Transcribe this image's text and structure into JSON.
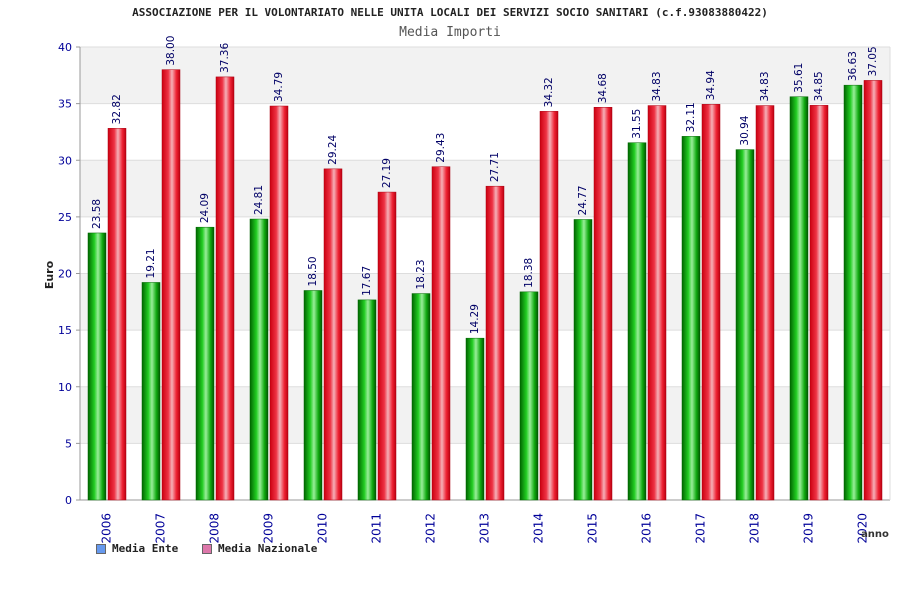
{
  "chart_data": {
    "type": "bar",
    "title": "ASSOCIAZIONE PER IL VOLONTARIATO NELLE UNITA LOCALI DEI SERVIZI SOCIO SANITARI (c.f.93083880422)",
    "subtitle": "Media Importi",
    "xlabel": "anno",
    "ylabel": "Euro",
    "ylim": [
      0,
      40
    ],
    "yticks": [
      "0",
      "5",
      "10",
      "15",
      "20",
      "25",
      "30",
      "35",
      "40"
    ],
    "grid": true,
    "legend_position": "bottom-left",
    "categories": [
      "2006",
      "2007",
      "2008",
      "2009",
      "2010",
      "2011",
      "2012",
      "2013",
      "2014",
      "2015",
      "2016",
      "2017",
      "2018",
      "2019",
      "2020"
    ],
    "series": [
      {
        "name": "Media Ente",
        "color": "#00b000",
        "legend_color": "#6699ee",
        "values": [
          23.58,
          19.21,
          24.09,
          24.81,
          18.5,
          17.67,
          18.23,
          14.29,
          18.38,
          24.77,
          31.55,
          32.11,
          30.94,
          35.61,
          36.63
        ],
        "labels": [
          "23.58",
          "19.21",
          "24.09",
          "24.81",
          "18.50",
          "17.67",
          "18.23",
          "14.29",
          "18.38",
          "24.77",
          "31.55",
          "32.11",
          "30.94",
          "35.61",
          "36.63"
        ]
      },
      {
        "name": "Media Nazionale",
        "color": "#ee1122",
        "legend_color": "#dd77aa",
        "values": [
          32.82,
          38.0,
          37.36,
          34.79,
          29.24,
          27.19,
          29.43,
          27.71,
          34.32,
          34.68,
          34.83,
          34.94,
          34.83,
          34.85,
          37.05
        ],
        "labels": [
          "32.82",
          "38.00",
          "37.36",
          "34.79",
          "29.24",
          "27.19",
          "29.43",
          "27.71",
          "34.32",
          "34.68",
          "34.83",
          "34.94",
          "34.83",
          "34.85",
          "37.05"
        ]
      }
    ]
  }
}
